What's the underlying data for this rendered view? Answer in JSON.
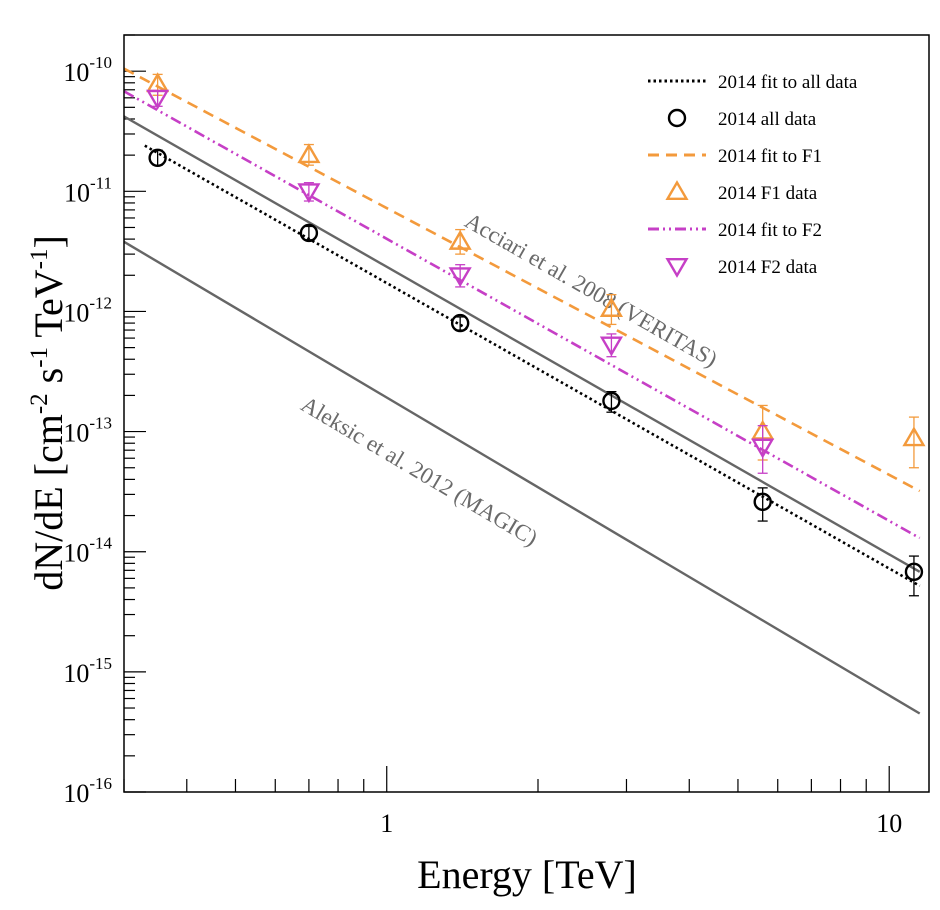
{
  "chart_data": {
    "type": "scatter",
    "xlabel": "Energy [TeV]",
    "ylabel_parts": {
      "base": "dN/dE [cm",
      "exp1": "-2",
      "mid1": " s",
      "exp2": "-1",
      "mid2": " TeV",
      "exp3": "-1",
      "end": "]"
    },
    "x_scale": "log",
    "y_scale": "log",
    "xlim": [
      0.3,
      12.0
    ],
    "ylim": [
      1e-16,
      2e-10
    ],
    "x_tick_labels": [
      {
        "value": 1,
        "label": "1"
      },
      {
        "value": 10,
        "label": "10"
      }
    ],
    "y_tick_labels": [
      {
        "value": 1e-10,
        "base": "10",
        "exp": "-10"
      },
      {
        "value": 1e-11,
        "base": "10",
        "exp": "-11"
      },
      {
        "value": 1e-12,
        "base": "10",
        "exp": "-12"
      },
      {
        "value": 1e-13,
        "base": "10",
        "exp": "-13"
      },
      {
        "value": 1e-14,
        "base": "10",
        "exp": "-14"
      },
      {
        "value": 1e-15,
        "base": "10",
        "exp": "-15"
      },
      {
        "value": 1e-16,
        "base": "10",
        "exp": "-16"
      }
    ],
    "grid": false,
    "legend_position": "top-right",
    "colors": {
      "all": "#000000",
      "f1": "#f39a3c",
      "f2": "#c63fc6",
      "reference": "#666666"
    },
    "lines": [
      {
        "key": "fit_all",
        "name": "2014 fit to all data",
        "style": "dotted",
        "color": "#000000",
        "x": [
          0.33,
          11.5
        ],
        "y": [
          2.4e-11,
          5.2e-15
        ]
      },
      {
        "key": "fit_f1",
        "name": "2014 fit to F1",
        "style": "dashed",
        "color": "#f39a3c",
        "x": [
          0.3,
          11.5
        ],
        "y": [
          1.05e-10,
          3.2e-14
        ]
      },
      {
        "key": "fit_f2",
        "name": "2014 fit to F2",
        "style": "dashdot",
        "color": "#c63fc6",
        "x": [
          0.3,
          11.5
        ],
        "y": [
          6.8e-11,
          1.3e-14
        ]
      },
      {
        "key": "veritas",
        "name": "",
        "style": "solid",
        "color": "#666666",
        "x": [
          0.3,
          11.5
        ],
        "y": [
          4.2e-11,
          6.8e-15
        ]
      },
      {
        "key": "magic",
        "name": "",
        "style": "solid",
        "color": "#666666",
        "x": [
          0.3,
          11.5
        ],
        "y": [
          3.8e-12,
          4.5e-16
        ]
      }
    ],
    "series": [
      {
        "key": "all_data",
        "name": "2014 all data",
        "marker": "circle",
        "color": "#000000",
        "x": [
          0.35,
          0.7,
          1.4,
          2.8,
          5.6,
          11.2
        ],
        "y": [
          1.9e-11,
          4.5e-12,
          8e-13,
          1.8e-13,
          2.6e-14,
          6.8e-15
        ],
        "y_low": [
          1.65e-11,
          3.95e-12,
          7e-13,
          1.45e-13,
          1.8e-14,
          4.3e-15
        ],
        "y_high": [
          2.2e-11,
          5.1e-12,
          9e-13,
          2.15e-13,
          3.4e-14,
          9.2e-15
        ]
      },
      {
        "key": "f1_data",
        "name": "2014 F1 data",
        "marker": "triangle-up",
        "color": "#f39a3c",
        "x": [
          0.35,
          0.7,
          1.4,
          2.8,
          5.6,
          11.2
        ],
        "y": [
          7.8e-11,
          2e-11,
          3.8e-12,
          1.05e-12,
          1e-13,
          8.8e-14
        ],
        "y_low": [
          6.3e-11,
          1.65e-11,
          3e-12,
          7.8e-13,
          5.8e-14,
          5e-14
        ],
        "y_high": [
          9.4e-11,
          2.45e-11,
          4.8e-12,
          1.38e-12,
          1.65e-13,
          1.32e-13
        ]
      },
      {
        "key": "f2_data",
        "name": "2014 F2 data",
        "marker": "triangle-down",
        "color": "#c63fc6",
        "x": [
          0.35,
          0.7,
          1.4,
          2.8,
          5.6
        ],
        "y": [
          6e-11,
          1e-11,
          2e-12,
          5.3e-13,
          7.5e-14
        ],
        "y_low": [
          5.1e-11,
          8.3e-12,
          1.6e-12,
          4.2e-13,
          4.5e-14
        ],
        "y_high": [
          6.9e-11,
          1.18e-11,
          2.45e-12,
          6.5e-13,
          1.12e-13
        ]
      }
    ],
    "legend": [
      {
        "name": "2014 fit to all data",
        "type": "line",
        "style": "dotted",
        "color": "#000000"
      },
      {
        "name": "2014 all data",
        "type": "marker",
        "marker": "circle",
        "color": "#000000"
      },
      {
        "name": "2014 fit to F1",
        "type": "line",
        "style": "dashed",
        "color": "#f39a3c"
      },
      {
        "name": "2014 F1 data",
        "type": "marker",
        "marker": "triangle-up",
        "color": "#f39a3c"
      },
      {
        "name": "2014 fit to F2",
        "type": "line",
        "style": "dashdot",
        "color": "#c63fc6"
      },
      {
        "name": "2014 F2 data",
        "type": "marker",
        "marker": "triangle-down",
        "color": "#c63fc6"
      }
    ],
    "annotations": [
      {
        "key": "veritas_label",
        "text": "Acciari et al. 2008 (VERITAS)",
        "x": 1.42,
        "y": 5.2e-12
      },
      {
        "key": "magic_label",
        "text": "Aleksic et al. 2012 (MAGIC)",
        "x": 0.67,
        "y": 1.55e-13
      }
    ]
  }
}
